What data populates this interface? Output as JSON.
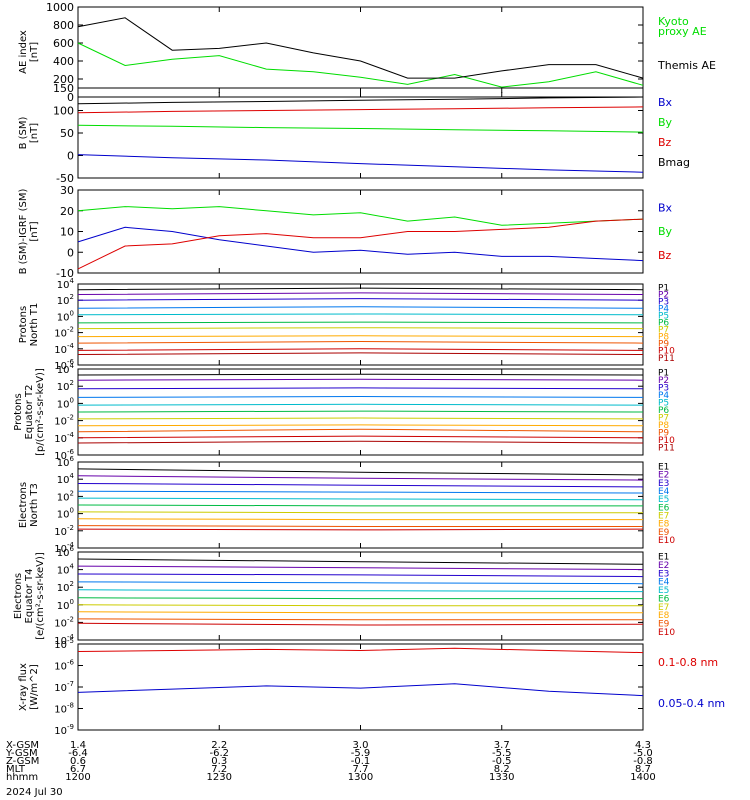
{
  "figure": {
    "date_label": "2024 Jul 30",
    "orbit_row_labels": [
      "X-GSM",
      "Y-GSM",
      "Z-GSM",
      "MLT",
      "hhmm"
    ],
    "orbit_columns": [
      [
        "1.4",
        "-6.4",
        "0.6",
        "6.7",
        "1200"
      ],
      [
        "2.2",
        "-6.2",
        "0.3",
        "7.2",
        "1230"
      ],
      [
        "3.0",
        "-5.9",
        "-0.1",
        "7.7",
        "1300"
      ],
      [
        "3.7",
        "-5.5",
        "-0.5",
        "8.2",
        "1330"
      ],
      [
        "4.3",
        "-5.0",
        "-0.8",
        "8.7",
        "1400"
      ]
    ]
  },
  "chart_data": [
    {
      "id": "ae",
      "type": "line",
      "ylabel": [
        "AE index",
        "[nT]"
      ],
      "ylim": [
        0,
        1000
      ],
      "yticks": [
        "0",
        "200",
        "400",
        "600",
        "800",
        "1000"
      ],
      "x": [
        0,
        10,
        20,
        30,
        40,
        50,
        60,
        70,
        80,
        90,
        100,
        110,
        120
      ],
      "series": [
        {
          "name": "Kyoto proxy AE",
          "color": "#00dd00",
          "values": [
            600,
            350,
            420,
            460,
            310,
            280,
            220,
            140,
            250,
            110,
            170,
            280,
            130
          ]
        },
        {
          "name": "Themis AE",
          "color": "#000000",
          "values": [
            780,
            880,
            520,
            540,
            600,
            490,
            400,
            210,
            210,
            290,
            360,
            360,
            210
          ]
        }
      ],
      "legend": [
        {
          "text": "Kyoto",
          "color": "#00dd00"
        },
        {
          "text": "proxy AE",
          "color": "#00dd00"
        },
        {
          "text": "Themis AE",
          "color": "#000000"
        }
      ]
    },
    {
      "id": "bsm",
      "type": "line",
      "ylabel": [
        "B (SM)",
        "[nT]"
      ],
      "ylim": [
        -50,
        150
      ],
      "yticks": [
        "-50",
        "0",
        "50",
        "100",
        "150"
      ],
      "x": [
        0,
        20,
        40,
        60,
        80,
        100,
        120
      ],
      "series": [
        {
          "name": "Bmag",
          "color": "#000000",
          "values": [
            115,
            118,
            120,
            123,
            125,
            128,
            130
          ]
        },
        {
          "name": "Bz",
          "color": "#dd0000",
          "values": [
            95,
            98,
            100,
            102,
            104,
            106,
            108
          ]
        },
        {
          "name": "By",
          "color": "#00dd00",
          "values": [
            67,
            65,
            62,
            60,
            57,
            55,
            52
          ]
        },
        {
          "name": "Bx",
          "color": "#0000cc",
          "values": [
            2,
            -5,
            -10,
            -18,
            -25,
            -32,
            -37
          ]
        }
      ],
      "legend": [
        {
          "text": "Bx",
          "color": "#0000cc"
        },
        {
          "text": "By",
          "color": "#00dd00"
        },
        {
          "text": "Bz",
          "color": "#dd0000"
        },
        {
          "text": "Bmag",
          "color": "#000000"
        }
      ]
    },
    {
      "id": "bigrf",
      "type": "line",
      "ylabel": [
        "B (SM)-IGRF (SM)",
        "[nT]"
      ],
      "ylim": [
        -10,
        30
      ],
      "yticks": [
        "-10",
        "0",
        "10",
        "20",
        "30"
      ],
      "x": [
        0,
        10,
        20,
        30,
        40,
        50,
        60,
        70,
        80,
        90,
        100,
        110,
        120
      ],
      "series": [
        {
          "name": "Bx",
          "color": "#0000cc",
          "values": [
            5,
            12,
            10,
            6,
            3,
            0,
            1,
            -1,
            0,
            -2,
            -2,
            -3,
            -4
          ]
        },
        {
          "name": "By",
          "color": "#00dd00",
          "values": [
            20,
            22,
            21,
            22,
            20,
            18,
            19,
            15,
            17,
            13,
            14,
            15,
            16
          ]
        },
        {
          "name": "Bz",
          "color": "#dd0000",
          "values": [
            -8,
            3,
            4,
            8,
            9,
            7,
            7,
            10,
            10,
            11,
            12,
            15,
            16
          ]
        }
      ],
      "legend": [
        {
          "text": "Bx",
          "color": "#0000cc"
        },
        {
          "text": "By",
          "color": "#00dd00"
        },
        {
          "text": "Bz",
          "color": "#dd0000"
        }
      ]
    },
    {
      "id": "protons_t1",
      "type": "line",
      "log": true,
      "ylabel": [
        "Protons",
        "North T1"
      ],
      "ylim": [
        -6,
        4
      ],
      "yticks": [
        "-6",
        "-4",
        "-2",
        "0",
        "2",
        "4"
      ],
      "x": [
        0,
        60,
        120
      ],
      "series": [
        {
          "name": "P1",
          "color": "#000000",
          "values": [
            3.3,
            3.5,
            3.3
          ]
        },
        {
          "name": "P2",
          "color": "#6600aa",
          "values": [
            2.7,
            2.9,
            2.7
          ]
        },
        {
          "name": "P3",
          "color": "#2200cc",
          "values": [
            2.0,
            2.2,
            2.0
          ]
        },
        {
          "name": "P4",
          "color": "#0077ee",
          "values": [
            1.0,
            1.2,
            1.0
          ]
        },
        {
          "name": "P5",
          "color": "#00bbcc",
          "values": [
            0.2,
            0.3,
            0.2
          ]
        },
        {
          "name": "P6",
          "color": "#00bb44",
          "values": [
            -0.8,
            -0.7,
            -0.8
          ]
        },
        {
          "name": "P7",
          "color": "#cccc00",
          "values": [
            -1.5,
            -1.4,
            -1.5
          ]
        },
        {
          "name": "P8",
          "color": "#ffaa00",
          "values": [
            -2.5,
            -2.4,
            -2.5
          ]
        },
        {
          "name": "P9",
          "color": "#ee5500",
          "values": [
            -3.3,
            -3.1,
            -3.3
          ]
        },
        {
          "name": "P10",
          "color": "#cc0000",
          "values": [
            -4.2,
            -4.0,
            -4.2
          ]
        },
        {
          "name": "P11",
          "color": "#aa0000",
          "values": [
            -4.7,
            -4.5,
            -4.7
          ]
        }
      ],
      "legend": [
        "P1",
        "P2",
        "P3",
        "P4",
        "P5",
        "P6",
        "P7",
        "P8",
        "P9",
        "P10",
        "P11"
      ]
    },
    {
      "id": "protons_t2",
      "type": "line",
      "log": true,
      "ylabel": [
        "Protons",
        "Equator T2",
        "[p/(cm²-s-sr-keV)]"
      ],
      "ylim": [
        -6,
        4
      ],
      "yticks": [
        "-6",
        "-4",
        "-2",
        "0",
        "2",
        "4"
      ],
      "x": [
        0,
        60,
        120
      ],
      "series": [
        {
          "name": "P1",
          "color": "#000000",
          "values": [
            3.3,
            3.4,
            3.3
          ]
        },
        {
          "name": "P2",
          "color": "#6600aa",
          "values": [
            2.7,
            2.8,
            2.7
          ]
        },
        {
          "name": "P3",
          "color": "#2200cc",
          "values": [
            1.7,
            1.8,
            1.7
          ]
        },
        {
          "name": "P4",
          "color": "#0077ee",
          "values": [
            0.7,
            0.8,
            0.7
          ]
        },
        {
          "name": "P5",
          "color": "#00bbcc",
          "values": [
            -0.2,
            -0.1,
            -0.2
          ]
        },
        {
          "name": "P6",
          "color": "#00bb44",
          "values": [
            -1.0,
            -0.9,
            -1.0
          ]
        },
        {
          "name": "P7",
          "color": "#cccc00",
          "values": [
            -1.8,
            -1.7,
            -1.8
          ]
        },
        {
          "name": "P8",
          "color": "#ffaa00",
          "values": [
            -2.6,
            -2.5,
            -2.6
          ]
        },
        {
          "name": "P9",
          "color": "#ee5500",
          "values": [
            -3.3,
            -3.0,
            -3.3
          ]
        },
        {
          "name": "P10",
          "color": "#cc0000",
          "values": [
            -4.0,
            -3.8,
            -4.0
          ]
        },
        {
          "name": "P11",
          "color": "#aa0000",
          "values": [
            -4.6,
            -4.4,
            -4.6
          ]
        }
      ],
      "legend": [
        "P1",
        "P2",
        "P3",
        "P4",
        "P5",
        "P6",
        "P7",
        "P8",
        "P9",
        "P10",
        "P11"
      ]
    },
    {
      "id": "electrons_t3",
      "type": "line",
      "log": true,
      "ylabel": [
        "Electrons",
        "North T3"
      ],
      "ylim": [
        -4,
        6
      ],
      "yticks": [
        "-4",
        "-2",
        "0",
        "2",
        "4",
        "6"
      ],
      "x": [
        0,
        60,
        120
      ],
      "series": [
        {
          "name": "E1",
          "color": "#000000",
          "values": [
            5.2,
            4.8,
            4.5
          ]
        },
        {
          "name": "E2",
          "color": "#6600aa",
          "values": [
            4.4,
            4.1,
            3.9
          ]
        },
        {
          "name": "E3",
          "color": "#2200cc",
          "values": [
            3.5,
            3.3,
            3.1
          ]
        },
        {
          "name": "E4",
          "color": "#0077ee",
          "values": [
            2.6,
            2.5,
            2.4
          ]
        },
        {
          "name": "E5",
          "color": "#00bbcc",
          "values": [
            1.8,
            1.7,
            1.6
          ]
        },
        {
          "name": "E6",
          "color": "#00bb44",
          "values": [
            1.0,
            0.9,
            0.9
          ]
        },
        {
          "name": "E7",
          "color": "#cccc00",
          "values": [
            0.2,
            0.1,
            0.1
          ]
        },
        {
          "name": "E8",
          "color": "#ffaa00",
          "values": [
            -0.6,
            -0.7,
            -0.7
          ]
        },
        {
          "name": "E9",
          "color": "#ee5500",
          "values": [
            -1.4,
            -1.5,
            -1.5
          ]
        },
        {
          "name": "E10",
          "color": "#cc0000",
          "values": [
            -1.8,
            -1.9,
            -1.8
          ]
        }
      ],
      "legend": [
        "E1",
        "E2",
        "E3",
        "E4",
        "E5",
        "E6",
        "E7",
        "E8",
        "E9",
        "E10"
      ]
    },
    {
      "id": "electrons_t4",
      "type": "line",
      "log": true,
      "ylabel": [
        "Electrons",
        "Equator T4",
        "[e/(cm²-s-sr-keV)]"
      ],
      "ylim": [
        -4,
        6
      ],
      "yticks": [
        "-4",
        "-2",
        "0",
        "2",
        "4",
        "6"
      ],
      "x": [
        0,
        60,
        120
      ],
      "series": [
        {
          "name": "E1",
          "color": "#000000",
          "values": [
            5.2,
            4.9,
            4.6
          ]
        },
        {
          "name": "E2",
          "color": "#6600aa",
          "values": [
            4.4,
            4.2,
            4.0
          ]
        },
        {
          "name": "E3",
          "color": "#2200cc",
          "values": [
            3.5,
            3.4,
            3.2
          ]
        },
        {
          "name": "E4",
          "color": "#0077ee",
          "values": [
            2.6,
            2.5,
            2.4
          ]
        },
        {
          "name": "E5",
          "color": "#00bbcc",
          "values": [
            1.7,
            1.6,
            1.5
          ]
        },
        {
          "name": "E6",
          "color": "#00bb44",
          "values": [
            0.8,
            0.7,
            0.7
          ]
        },
        {
          "name": "E7",
          "color": "#cccc00",
          "values": [
            0.0,
            -0.1,
            -0.1
          ]
        },
        {
          "name": "E8",
          "color": "#ffaa00",
          "values": [
            -0.8,
            -0.9,
            -0.9
          ]
        },
        {
          "name": "E9",
          "color": "#ee5500",
          "values": [
            -1.6,
            -1.7,
            -1.7
          ]
        },
        {
          "name": "E10",
          "color": "#cc0000",
          "values": [
            -2.1,
            -2.3,
            -2.2
          ]
        }
      ],
      "legend": [
        "E1",
        "E2",
        "E3",
        "E4",
        "E5",
        "E6",
        "E7",
        "E8",
        "E9",
        "E10"
      ]
    },
    {
      "id": "xray",
      "type": "line",
      "log": true,
      "ylabel": [
        "X-ray flux",
        "[W/m^2]"
      ],
      "ylim": [
        -9,
        -5
      ],
      "yticks": [
        "-9",
        "-8",
        "-7",
        "-6",
        "-5"
      ],
      "x": [
        0,
        20,
        40,
        60,
        80,
        100,
        120
      ],
      "series": [
        {
          "name": "0.1-0.8 nm",
          "color": "#dd0000",
          "values": [
            -5.35,
            -5.3,
            -5.25,
            -5.3,
            -5.2,
            -5.3,
            -5.4
          ]
        },
        {
          "name": "0.05-0.4 nm",
          "color": "#0000cc",
          "values": [
            -7.25,
            -7.1,
            -6.95,
            -7.05,
            -6.85,
            -7.2,
            -7.4
          ]
        }
      ],
      "legend": [
        {
          "text": "0.1-0.8 nm",
          "color": "#dd0000"
        },
        {
          "text": "0.05-0.4 nm",
          "color": "#0000cc"
        }
      ]
    }
  ]
}
